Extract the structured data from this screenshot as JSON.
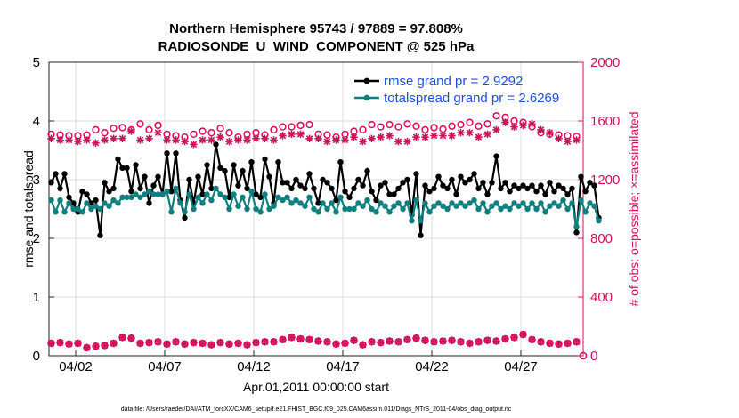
{
  "chart_data": {
    "type": "line",
    "title_line1": "Northern Hemisphere 95743 / 97889 = 97.808%",
    "title_line2": "RADIOSONDE_U_WIND_COMPONENT @ 525 hPa",
    "xlabel": "Apr.01,2011 00:00:00 start",
    "ylabel_left": "rmse and totalspread",
    "ylabel_right": "# of obs: o=possible; ×=assimilated",
    "footer": "data file: /Users/raeder/DAI/ATM_forcXX/CAM6_setup/f.e21.FHIST_BGC.f09_025.CAM6assim.011/Diags_NTrS_2011-04/obs_diag_output.nc",
    "xlim": [
      0.5,
      30.5
    ],
    "ylim_left": [
      0,
      5
    ],
    "ylim_right": [
      0,
      2000
    ],
    "xticks": [
      {
        "v": 2,
        "label": "04/02"
      },
      {
        "v": 7,
        "label": "04/07"
      },
      {
        "v": 12,
        "label": "04/12"
      },
      {
        "v": 17,
        "label": "04/17"
      },
      {
        "v": 22,
        "label": "04/22"
      },
      {
        "v": 27,
        "label": "04/27"
      }
    ],
    "yticks_left": [
      "0",
      "1",
      "2",
      "3",
      "4",
      "5"
    ],
    "yticks_right": [
      "0",
      "400",
      "800",
      "1200",
      "1600",
      "2000"
    ],
    "colors": {
      "rmse": "#000000",
      "spread": "#0f7f7f",
      "obs": "#d0105a",
      "legend_text": "#1a50e0",
      "axis": "#222222",
      "grid": "#dcdcdc"
    },
    "legend": [
      {
        "name": "rmse grand pr = 2.9292",
        "series": "rmse"
      },
      {
        "name": "totalspread grand pr = 2.6269",
        "series": "spread"
      }
    ],
    "series": [
      {
        "name": "rmse",
        "axis": "left",
        "x0": 0.625,
        "dx": 0.25,
        "values": [
          2.95,
          3.1,
          2.85,
          3.1,
          2.7,
          2.6,
          2.45,
          2.8,
          2.75,
          2.6,
          2.65,
          2.05,
          2.95,
          2.8,
          2.85,
          3.35,
          3.2,
          3.2,
          2.8,
          3.25,
          2.85,
          3.05,
          2.6,
          2.9,
          3.05,
          2.75,
          3.45,
          2.8,
          3.45,
          2.65,
          2.35,
          3.0,
          2.6,
          3.05,
          2.75,
          3.25,
          2.85,
          3.6,
          3.2,
          3.15,
          2.7,
          3.25,
          2.9,
          3.15,
          2.85,
          3.3,
          2.75,
          2.7,
          3.35,
          3.05,
          2.6,
          3.3,
          2.95,
          2.95,
          2.85,
          3.0,
          2.9,
          2.85,
          3.1,
          2.85,
          2.6,
          3.0,
          2.95,
          2.85,
          2.65,
          3.3,
          2.8,
          2.7,
          2.85,
          3.0,
          2.9,
          3.15,
          2.8,
          2.65,
          2.9,
          2.95,
          2.75,
          2.75,
          2.85,
          2.95,
          3.0,
          2.4,
          3.1,
          2.05,
          2.9,
          2.8,
          2.85,
          3.05,
          2.9,
          2.85,
          3.0,
          2.75,
          3.05,
          2.95,
          3.0,
          3.1,
          2.85,
          2.95,
          2.75,
          2.95,
          3.4,
          2.85,
          2.95,
          2.8,
          2.9,
          2.85,
          2.9,
          2.85,
          2.9,
          2.8,
          2.9,
          2.75,
          2.95,
          2.8,
          2.9,
          2.85,
          2.75,
          2.85,
          2.1,
          3.05,
          2.8,
          2.95,
          2.9,
          2.35
        ]
      },
      {
        "name": "spread",
        "axis": "left",
        "x0": 0.625,
        "dx": 0.25,
        "values": [
          2.65,
          2.45,
          2.65,
          2.45,
          2.6,
          2.5,
          2.5,
          2.45,
          2.6,
          2.5,
          2.55,
          2.5,
          2.6,
          2.55,
          2.65,
          2.6,
          2.7,
          2.7,
          2.7,
          2.75,
          2.7,
          2.75,
          2.8,
          2.75,
          2.75,
          2.75,
          2.8,
          2.45,
          2.85,
          2.6,
          2.45,
          2.75,
          2.5,
          2.7,
          2.6,
          2.75,
          2.65,
          2.85,
          2.75,
          2.7,
          2.5,
          2.75,
          2.55,
          2.7,
          2.5,
          2.8,
          2.5,
          2.45,
          2.75,
          2.5,
          2.55,
          2.7,
          2.65,
          2.7,
          2.6,
          2.65,
          2.6,
          2.55,
          2.7,
          2.5,
          2.45,
          2.6,
          2.5,
          2.6,
          2.45,
          2.7,
          2.5,
          2.5,
          2.5,
          2.6,
          2.55,
          2.65,
          2.5,
          2.45,
          2.6,
          2.55,
          2.45,
          2.55,
          2.6,
          2.5,
          2.6,
          2.3,
          2.65,
          2.3,
          2.6,
          2.45,
          2.55,
          2.6,
          2.55,
          2.5,
          2.6,
          2.55,
          2.6,
          2.55,
          2.6,
          2.65,
          2.5,
          2.6,
          2.45,
          2.55,
          2.6,
          2.5,
          2.55,
          2.5,
          2.6,
          2.55,
          2.6,
          2.5,
          2.6,
          2.5,
          2.6,
          2.45,
          2.55,
          2.6,
          2.55,
          2.65,
          2.5,
          2.6,
          2.2,
          2.65,
          2.45,
          2.6,
          2.55,
          2.3
        ]
      },
      {
        "name": "possible",
        "axis": "right",
        "marker": "o",
        "x0": 0.625,
        "dx": 0.5,
        "values": [
          1510,
          1505,
          1500,
          1500,
          1505,
          1540,
          1520,
          1550,
          1555,
          1540,
          1580,
          1540,
          1570,
          1510,
          1500,
          1490,
          1510,
          1530,
          1520,
          1550,
          1520,
          1490,
          1510,
          1520,
          1505,
          1540,
          1560,
          1560,
          1570,
          1575,
          1510,
          1505,
          1490,
          1510,
          1530,
          1540,
          1575,
          1560,
          1575,
          1560,
          1580,
          1565,
          1540,
          1555,
          1545,
          1565,
          1575,
          1590,
          1565,
          1580,
          1635,
          1625,
          1600,
          1590,
          1560,
          1520,
          1510,
          1505,
          1500,
          1495
        ]
      },
      {
        "name": "assimilated",
        "axis": "right",
        "marker": "x",
        "x0": 0.625,
        "dx": 0.5,
        "values": [
          1480,
          1470,
          1470,
          1460,
          1470,
          1450,
          1470,
          1480,
          1480,
          1530,
          1470,
          1480,
          1520,
          1470,
          1470,
          1460,
          1440,
          1470,
          1470,
          1490,
          1460,
          1470,
          1470,
          1480,
          1480,
          1470,
          1500,
          1510,
          1510,
          1480,
          1480,
          1460,
          1470,
          1470,
          1490,
          1460,
          1480,
          1490,
          1500,
          1460,
          1460,
          1490,
          1490,
          1500,
          1500,
          1500,
          1520,
          1520,
          1490,
          1510,
          1540,
          1590,
          1560,
          1570,
          1580,
          1540,
          1520,
          1480,
          1460,
          1470
        ]
      },
      {
        "name": "rejected",
        "axis": "right",
        "marker": "o",
        "x0": 0.625,
        "dx": 0.5,
        "values": [
          85,
          90,
          80,
          85,
          55,
          65,
          70,
          85,
          125,
          120,
          85,
          90,
          95,
          80,
          95,
          80,
          90,
          85,
          75,
          90,
          80,
          85,
          75,
          90,
          95,
          95,
          110,
          125,
          115,
          110,
          100,
          95,
          80,
          85,
          105,
          75,
          95,
          90,
          100,
          95,
          110,
          120,
          105,
          95,
          100,
          105,
          95,
          85,
          95,
          105,
          100,
          115,
          125,
          145,
          110,
          95,
          85,
          80,
          85,
          95
        ]
      },
      {
        "name": "rejected-x",
        "axis": "right",
        "marker": "x",
        "x0": 0.625,
        "dx": 0.5,
        "values": [
          85,
          90,
          80,
          85,
          55,
          65,
          70,
          85,
          125,
          120,
          85,
          90,
          95,
          80,
          95,
          80,
          90,
          85,
          75,
          90,
          80,
          85,
          75,
          90,
          95,
          95,
          110,
          125,
          115,
          110,
          100,
          95,
          80,
          85,
          105,
          75,
          95,
          90,
          100,
          95,
          110,
          120,
          105,
          95,
          100,
          105,
          95,
          85,
          95,
          105,
          100,
          115,
          125,
          145,
          110,
          95,
          85,
          80,
          85,
          95
        ]
      }
    ]
  }
}
